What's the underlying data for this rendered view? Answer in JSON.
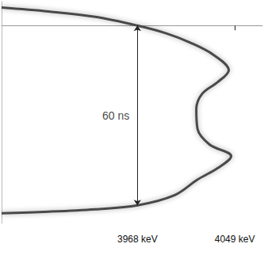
{
  "chart_data": {
    "type": "line",
    "x_label_unit_note_free": null,
    "xlim": [
      3855,
      4072
    ],
    "xticks": [
      {
        "value": 3968,
        "label": "3968 keV"
      },
      {
        "value": 4049,
        "label": "4049 keV"
      }
    ],
    "ylim": [
      -8,
      66
    ],
    "tick_labels": "x",
    "grid": false,
    "color": "#4a4a4a",
    "x": [
      3855,
      3894,
      3933,
      3968,
      3992,
      4012,
      4031,
      4044,
      4035,
      4022,
      4017,
      4018,
      4028,
      4046,
      4035,
      4018,
      3999,
      3968,
      3933,
      3894,
      3855
    ],
    "values": [
      -6.0,
      -4.7,
      -2.9,
      0,
      2.6,
      5.7,
      9.7,
      14.9,
      18.8,
      22.7,
      27.9,
      34.5,
      39.7,
      43.6,
      47.5,
      51.4,
      56.6,
      60,
      61.3,
      62.1,
      62.6
    ],
    "annotations": [
      {
        "text": "60 ns",
        "x": 3968,
        "y1": 0,
        "y2": 60
      }
    ]
  }
}
